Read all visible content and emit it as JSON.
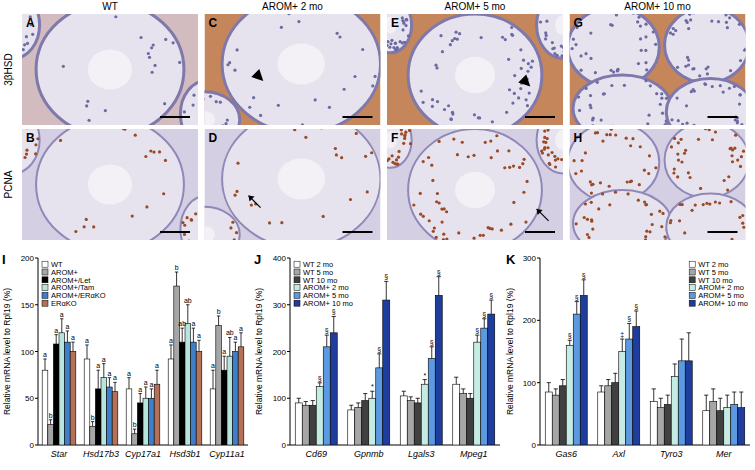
{
  "images": {
    "row_labels": [
      "3βHSD",
      "PCNA"
    ],
    "columns": [
      {
        "header": "WT",
        "panels": [
          "A",
          "B"
        ]
      },
      {
        "header": "AROM+ 2 mo",
        "panels": [
          "C",
          "D"
        ]
      },
      {
        "header": "AROM+ 5 mo",
        "panels": [
          "E",
          "F"
        ]
      },
      {
        "header": "AROM+ 10 mo",
        "panels": [
          "G",
          "H"
        ]
      }
    ]
  },
  "chart_data": [
    {
      "type": "bar",
      "title": "I",
      "y_label": "Relative mRNA level to Rpl19 (%)",
      "categories": [
        "Star",
        "Hsd17b3",
        "Cyp17a1",
        "Hsd3b1",
        "Cyp11a1"
      ],
      "series": [
        {
          "name": "WT",
          "color": "#ffffff",
          "values": [
            80,
            92,
            60,
            92,
            60
          ],
          "errors": [
            12,
            15,
            12,
            15,
            20
          ],
          "annotations": [
            "a",
            "a",
            "a",
            "a",
            "a"
          ]
        },
        {
          "name": "AROM+",
          "color": "#a6a6a6",
          "values": [
            22,
            20,
            12,
            170,
            128
          ],
          "errors": [
            5,
            5,
            5,
            15,
            10
          ],
          "annotations": [
            "b",
            "b",
            "b",
            "b",
            "b"
          ]
        },
        {
          "name": "AROM+/Let",
          "color": "#000000",
          "values": [
            108,
            60,
            45,
            110,
            80
          ],
          "errors": [
            10,
            20,
            10,
            15,
            15
          ],
          "annotations": [
            "a",
            "a",
            "a",
            "ab",
            "a"
          ]
        },
        {
          "name": "AROM+/Tam",
          "color": "#b7e4dc",
          "values": [
            120,
            72,
            50,
            130,
            95
          ],
          "errors": [
            15,
            15,
            12,
            20,
            20
          ],
          "annotations": [
            "a",
            "a",
            "a",
            "ab",
            "ab"
          ]
        },
        {
          "name": "AROM+/ERαKO",
          "color": "#3e7fcc",
          "values": [
            110,
            62,
            50,
            110,
            100
          ],
          "errors": [
            12,
            10,
            10,
            15,
            10
          ],
          "annotations": [
            "a",
            "a",
            "a",
            "a",
            "a"
          ]
        },
        {
          "name": "ERαKO",
          "color": "#b57058",
          "values": [
            100,
            57,
            65,
            100,
            105
          ],
          "errors": [
            10,
            10,
            15,
            12,
            15
          ],
          "annotations": [
            "a",
            "a",
            "a",
            "a",
            "a"
          ]
        }
      ],
      "ylim": [
        0,
        200
      ],
      "yticks": [
        0,
        50,
        100,
        150,
        200
      ],
      "legend": "upper-left",
      "grid": false
    },
    {
      "type": "bar",
      "title": "J",
      "y_label": "Relative mRNA level to Rpl19 (%)",
      "categories": [
        "Cd69",
        "Gpnmb",
        "Lgals3",
        "Mpeg1"
      ],
      "series": [
        {
          "name": "WT 2 mo",
          "color": "#ffffff",
          "values": [
            90,
            75,
            105,
            130
          ],
          "errors": [
            10,
            10,
            10,
            15
          ],
          "annotations": [
            null,
            null,
            null,
            null
          ]
        },
        {
          "name": "WT 5 mo",
          "color": "#a6a6a6",
          "values": [
            85,
            80,
            95,
            110
          ],
          "errors": [
            8,
            10,
            8,
            10
          ],
          "annotations": [
            null,
            null,
            null,
            null
          ]
        },
        {
          "name": "WT 10 mo",
          "color": "#404040",
          "values": [
            85,
            95,
            90,
            100
          ],
          "errors": [
            10,
            15,
            10,
            10
          ],
          "annotations": [
            null,
            null,
            null,
            null
          ]
        },
        {
          "name": "AROM+ 2 mo",
          "color": "#c5ebe3",
          "values": [
            125,
            100,
            130,
            220
          ],
          "errors": [
            8,
            15,
            10,
            15
          ],
          "annotations": [
            "§",
            "*",
            "*",
            "§"
          ]
        },
        {
          "name": "AROM+ 5 mo",
          "color": "#5b9ae0",
          "values": [
            210,
            165,
            185,
            250
          ],
          "errors": [
            25,
            30,
            25,
            20
          ],
          "annotations": [
            "§",
            "§",
            "§",
            "§"
          ]
        },
        {
          "name": "AROM+ 10 mo",
          "color": "#1e3d9c",
          "values": [
            240,
            310,
            320,
            280
          ],
          "errors": [
            35,
            40,
            40,
            30
          ],
          "annotations": [
            "§",
            "§",
            "§",
            "§"
          ]
        }
      ],
      "ylim": [
        0,
        400
      ],
      "yticks": [
        0,
        100,
        200,
        300,
        400
      ],
      "legend": "upper-left",
      "grid": false
    },
    {
      "type": "bar",
      "title": "K",
      "y_label": "Relative mRNA level to Rpl19 (%)",
      "categories": [
        "Gas6",
        "Axl",
        "Tyro3",
        "Mer"
      ],
      "series": [
        {
          "name": "WT 2 mo",
          "color": "#ffffff",
          "values": [
            85,
            85,
            70,
            55
          ],
          "errors": [
            15,
            10,
            20,
            25
          ],
          "annotations": [
            null,
            null,
            null,
            null
          ]
        },
        {
          "name": "WT 5 mo",
          "color": "#a6a6a6",
          "values": [
            80,
            95,
            60,
            70
          ],
          "errors": [
            10,
            10,
            15,
            20
          ],
          "annotations": [
            null,
            null,
            null,
            null
          ]
        },
        {
          "name": "WT 10 mo",
          "color": "#404040",
          "values": [
            95,
            100,
            65,
            55
          ],
          "errors": [
            10,
            15,
            15,
            20
          ],
          "annotations": [
            null,
            null,
            null,
            null
          ]
        },
        {
          "name": "AROM+ 2 mo",
          "color": "#c5ebe3",
          "values": [
            160,
            150,
            110,
            60
          ],
          "errors": [
            8,
            20,
            20,
            20
          ],
          "annotations": [
            "§",
            "‡",
            null,
            null
          ]
        },
        {
          "name": "AROM+ 5 mo",
          "color": "#5b9ae0",
          "values": [
            210,
            170,
            135,
            65
          ],
          "errors": [
            20,
            25,
            35,
            20
          ],
          "annotations": [
            "§",
            "§",
            null,
            null
          ]
        },
        {
          "name": "AROM+ 10 mo",
          "color": "#1e3d9c",
          "values": [
            240,
            190,
            135,
            60
          ],
          "errors": [
            25,
            25,
            45,
            25
          ],
          "annotations": [
            "§",
            "§",
            null,
            null
          ]
        }
      ],
      "ylim": [
        0,
        300
      ],
      "yticks": [
        0,
        100,
        200,
        300
      ],
      "legend": "upper-right",
      "grid": false
    }
  ]
}
